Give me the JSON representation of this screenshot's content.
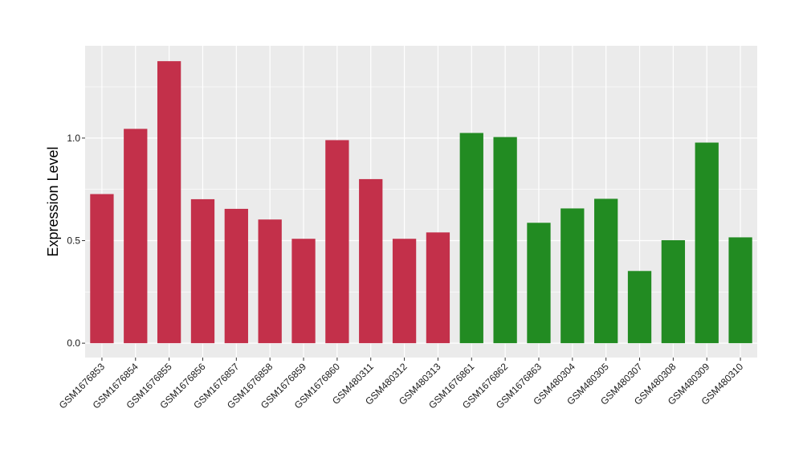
{
  "chart_data": {
    "type": "bar",
    "title": "",
    "xlabel": "",
    "ylabel": "Expression Level",
    "ylim": [
      -0.07,
      1.45
    ],
    "yticks": [
      0.0,
      0.5,
      1.0
    ],
    "ytick_labels": [
      "0.0",
      "0.5",
      "1.0"
    ],
    "grid": true,
    "legend": "none",
    "categories": [
      "GSM1676853",
      "GSM1676854",
      "GSM1676855",
      "GSM1676856",
      "GSM1676857",
      "GSM1676858",
      "GSM1676859",
      "GSM1676860",
      "GSM480311",
      "GSM480312",
      "GSM480313",
      "GSM1676861",
      "GSM1676862",
      "GSM1676863",
      "GSM480304",
      "GSM480305",
      "GSM480307",
      "GSM480308",
      "GSM480309",
      "GSM480310"
    ],
    "values": [
      0.727,
      1.045,
      1.375,
      0.702,
      0.655,
      0.603,
      0.509,
      0.99,
      0.8,
      0.509,
      0.54,
      1.025,
      1.005,
      0.587,
      0.657,
      0.704,
      0.352,
      0.502,
      0.978,
      0.516
    ],
    "bar_colors": [
      "#c3304a",
      "#c3304a",
      "#c3304a",
      "#c3304a",
      "#c3304a",
      "#c3304a",
      "#c3304a",
      "#c3304a",
      "#c3304a",
      "#c3304a",
      "#c3304a",
      "#228b22",
      "#228b22",
      "#228b22",
      "#228b22",
      "#228b22",
      "#228b22",
      "#228b22",
      "#228b22",
      "#228b22"
    ],
    "panel_background": "#ebebeb",
    "grid_color": "#ffffff"
  }
}
